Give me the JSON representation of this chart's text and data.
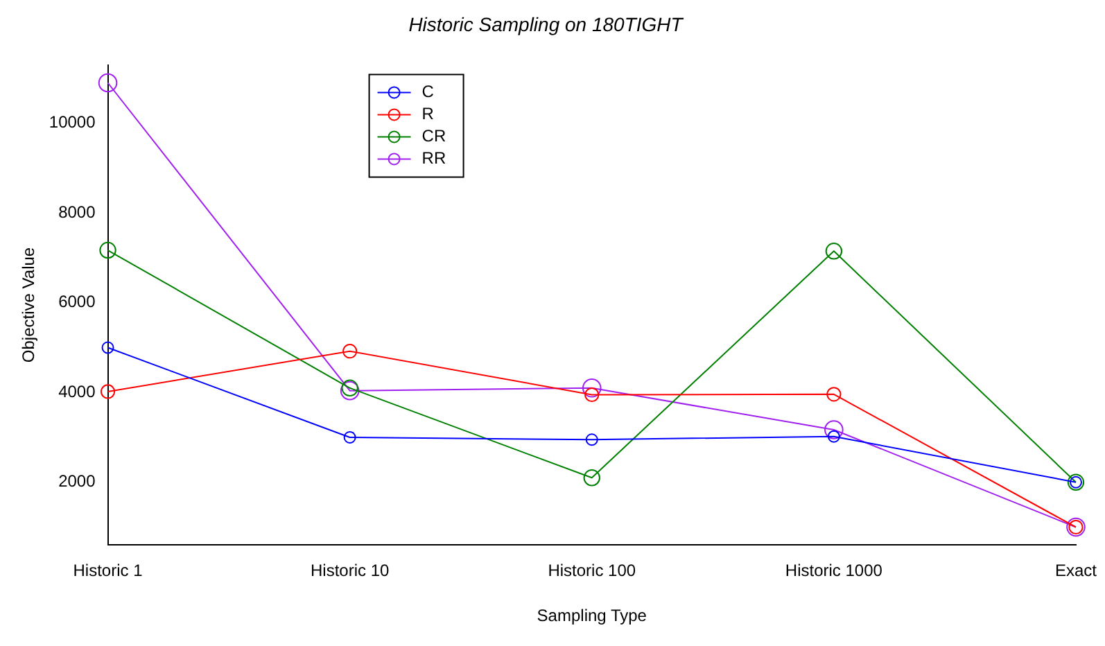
{
  "chart_data": {
    "type": "line",
    "title": "Historic Sampling on 180TIGHT",
    "xlabel": "Sampling Type",
    "ylabel": "Objective Value",
    "categories": [
      "Historic 1",
      "Historic 10",
      "Historic 100",
      "Historic 1000",
      "Exact"
    ],
    "series": [
      {
        "name": "C",
        "color": "#0000ff",
        "values": [
          5000,
          3000,
          2950,
          3020,
          2000
        ]
      },
      {
        "name": "R",
        "color": "#ff0000",
        "values": [
          4020,
          4920,
          3950,
          3960,
          1000
        ]
      },
      {
        "name": "CR",
        "color": "#008000",
        "values": [
          7170,
          4100,
          2100,
          7150,
          2000
        ]
      },
      {
        "name": "RR",
        "color": "#a020f0",
        "values": [
          10900,
          4040,
          4100,
          3170,
          1000
        ]
      }
    ],
    "ylim": [
      600,
      11300
    ],
    "yticks": [
      2000,
      4000,
      6000,
      8000,
      10000
    ],
    "grid": false,
    "legend": "top left",
    "marker": "circle",
    "line_style": "solid"
  }
}
